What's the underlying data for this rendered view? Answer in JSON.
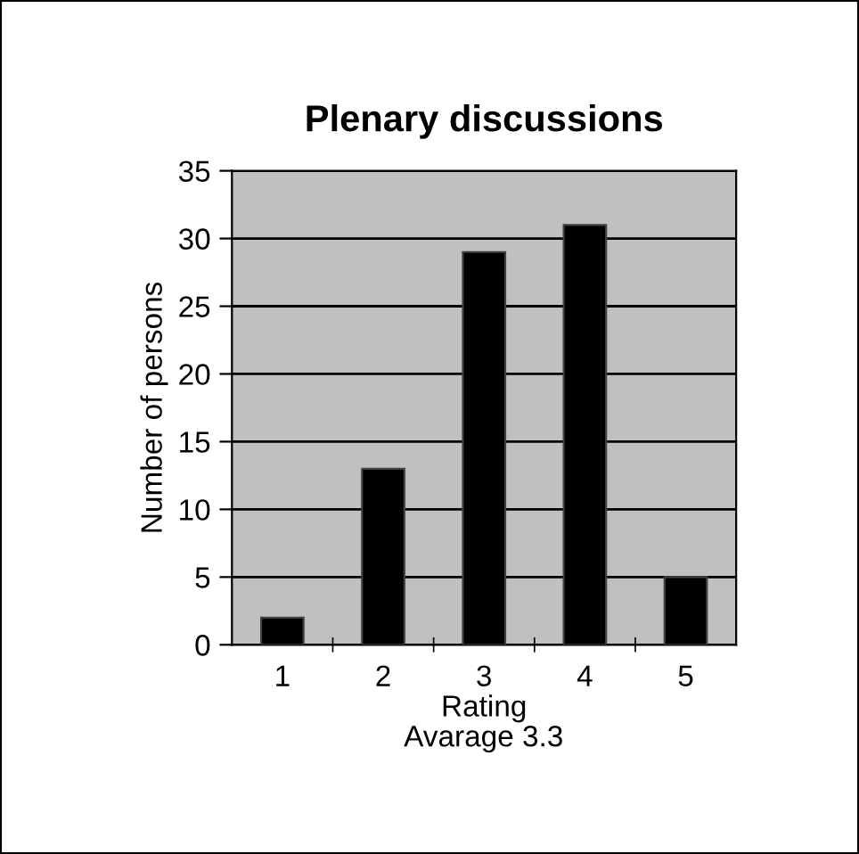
{
  "chart_data": {
    "type": "bar",
    "title": "Plenary discussions",
    "xlabel": "Rating",
    "ylabel": "Number of persons",
    "categories": [
      "1",
      "2",
      "3",
      "4",
      "5"
    ],
    "values": [
      2,
      13,
      29,
      31,
      5
    ],
    "color": "#000000",
    "ylim": [
      0,
      35
    ],
    "yticks": [
      0,
      5,
      10,
      15,
      20,
      25,
      30,
      35
    ],
    "grid": "y",
    "annotations": [
      "Avarage 3.3"
    ]
  }
}
